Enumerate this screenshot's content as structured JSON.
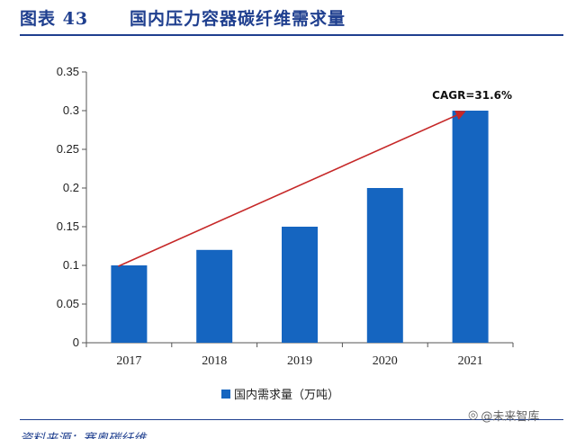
{
  "header": {
    "figure_label": "图表 43",
    "title": "国内压力容器碳纤维需求量"
  },
  "chart_data": {
    "type": "bar",
    "title": "国内压力容器碳纤维需求量",
    "categories": [
      "2017",
      "2018",
      "2019",
      "2020",
      "2021"
    ],
    "series": [
      {
        "name": "国内需求量（万吨）",
        "values": [
          0.1,
          0.12,
          0.15,
          0.2,
          0.3
        ]
      }
    ],
    "ylim": [
      0,
      0.35
    ],
    "yticks": [
      "0",
      "0.05",
      "0.1",
      "0.15",
      "0.2",
      "0.25",
      "0.3",
      "0.35"
    ],
    "xlabel": "",
    "ylabel": "",
    "legend_position": "bottom",
    "annotation": {
      "text": "CAGR=31.6%",
      "from_category": "2017",
      "to_category": "2021"
    },
    "colors": {
      "bar": "#1565c0",
      "arrow": "#c62828"
    }
  },
  "legend": {
    "label": "国内需求量（万吨）"
  },
  "source": {
    "text": "资料来源：赛奥碳纤维"
  },
  "watermark": {
    "icon": "camera-icon",
    "text": "@未来智库"
  }
}
